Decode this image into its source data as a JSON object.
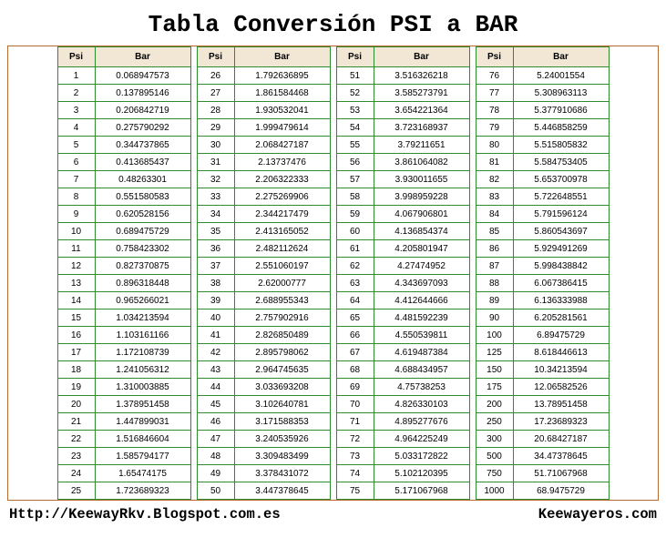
{
  "title": "Tabla Conversión PSI a BAR",
  "footer_left": "Http://KeewayRkv.Blogspot.com.es",
  "footer_right": "Keewayeros.com",
  "headers": {
    "psi": "Psi",
    "bar": "Bar"
  },
  "styling": {
    "border_color": "#2e8b2e",
    "header_bg": "#f2e7d5",
    "outer_border": "#b86a2e",
    "title_fontsize": 26,
    "cell_fontsize": 10,
    "footer_fontsize": 15.5
  },
  "columns": [
    [
      {
        "psi": "1",
        "bar": "0.068947573"
      },
      {
        "psi": "2",
        "bar": "0.137895146"
      },
      {
        "psi": "3",
        "bar": "0.206842719"
      },
      {
        "psi": "4",
        "bar": "0.275790292"
      },
      {
        "psi": "5",
        "bar": "0.344737865"
      },
      {
        "psi": "6",
        "bar": "0.413685437"
      },
      {
        "psi": "7",
        "bar": "0.48263301"
      },
      {
        "psi": "8",
        "bar": "0.551580583"
      },
      {
        "psi": "9",
        "bar": "0.620528156"
      },
      {
        "psi": "10",
        "bar": "0.689475729"
      },
      {
        "psi": "11",
        "bar": "0.758423302"
      },
      {
        "psi": "12",
        "bar": "0.827370875"
      },
      {
        "psi": "13",
        "bar": "0.896318448"
      },
      {
        "psi": "14",
        "bar": "0.965266021"
      },
      {
        "psi": "15",
        "bar": "1.034213594"
      },
      {
        "psi": "16",
        "bar": "1.103161166"
      },
      {
        "psi": "17",
        "bar": "1.172108739"
      },
      {
        "psi": "18",
        "bar": "1.241056312"
      },
      {
        "psi": "19",
        "bar": "1.310003885"
      },
      {
        "psi": "20",
        "bar": "1.378951458"
      },
      {
        "psi": "21",
        "bar": "1.447899031"
      },
      {
        "psi": "22",
        "bar": "1.516846604"
      },
      {
        "psi": "23",
        "bar": "1.585794177"
      },
      {
        "psi": "24",
        "bar": "1.65474175"
      },
      {
        "psi": "25",
        "bar": "1.723689323"
      }
    ],
    [
      {
        "psi": "26",
        "bar": "1.792636895"
      },
      {
        "psi": "27",
        "bar": "1.861584468"
      },
      {
        "psi": "28",
        "bar": "1.930532041"
      },
      {
        "psi": "29",
        "bar": "1.999479614"
      },
      {
        "psi": "30",
        "bar": "2.068427187"
      },
      {
        "psi": "31",
        "bar": "2.13737476"
      },
      {
        "psi": "32",
        "bar": "2.206322333"
      },
      {
        "psi": "33",
        "bar": "2.275269906"
      },
      {
        "psi": "34",
        "bar": "2.344217479"
      },
      {
        "psi": "35",
        "bar": "2.413165052"
      },
      {
        "psi": "36",
        "bar": "2.482112624"
      },
      {
        "psi": "37",
        "bar": "2.551060197"
      },
      {
        "psi": "38",
        "bar": "2.62000777"
      },
      {
        "psi": "39",
        "bar": "2.688955343"
      },
      {
        "psi": "40",
        "bar": "2.757902916"
      },
      {
        "psi": "41",
        "bar": "2.826850489"
      },
      {
        "psi": "42",
        "bar": "2.895798062"
      },
      {
        "psi": "43",
        "bar": "2.964745635"
      },
      {
        "psi": "44",
        "bar": "3.033693208"
      },
      {
        "psi": "45",
        "bar": "3.102640781"
      },
      {
        "psi": "46",
        "bar": "3.171588353"
      },
      {
        "psi": "47",
        "bar": "3.240535926"
      },
      {
        "psi": "48",
        "bar": "3.309483499"
      },
      {
        "psi": "49",
        "bar": "3.378431072"
      },
      {
        "psi": "50",
        "bar": "3.447378645"
      }
    ],
    [
      {
        "psi": "51",
        "bar": "3.516326218"
      },
      {
        "psi": "52",
        "bar": "3.585273791"
      },
      {
        "psi": "53",
        "bar": "3.654221364"
      },
      {
        "psi": "54",
        "bar": "3.723168937"
      },
      {
        "psi": "55",
        "bar": "3.79211651"
      },
      {
        "psi": "56",
        "bar": "3.861064082"
      },
      {
        "psi": "57",
        "bar": "3.930011655"
      },
      {
        "psi": "58",
        "bar": "3.998959228"
      },
      {
        "psi": "59",
        "bar": "4.067906801"
      },
      {
        "psi": "60",
        "bar": "4.136854374"
      },
      {
        "psi": "61",
        "bar": "4.205801947"
      },
      {
        "psi": "62",
        "bar": "4.27474952"
      },
      {
        "psi": "63",
        "bar": "4.343697093"
      },
      {
        "psi": "64",
        "bar": "4.412644666"
      },
      {
        "psi": "65",
        "bar": "4.481592239"
      },
      {
        "psi": "66",
        "bar": "4.550539811"
      },
      {
        "psi": "67",
        "bar": "4.619487384"
      },
      {
        "psi": "68",
        "bar": "4.688434957"
      },
      {
        "psi": "69",
        "bar": "4.75738253"
      },
      {
        "psi": "70",
        "bar": "4.826330103"
      },
      {
        "psi": "71",
        "bar": "4.895277676"
      },
      {
        "psi": "72",
        "bar": "4.964225249"
      },
      {
        "psi": "73",
        "bar": "5.033172822"
      },
      {
        "psi": "74",
        "bar": "5.102120395"
      },
      {
        "psi": "75",
        "bar": "5.171067968"
      }
    ],
    [
      {
        "psi": "76",
        "bar": "5.24001554"
      },
      {
        "psi": "77",
        "bar": "5.308963113"
      },
      {
        "psi": "78",
        "bar": "5.377910686"
      },
      {
        "psi": "79",
        "bar": "5.446858259"
      },
      {
        "psi": "80",
        "bar": "5.515805832"
      },
      {
        "psi": "81",
        "bar": "5.584753405"
      },
      {
        "psi": "82",
        "bar": "5.653700978"
      },
      {
        "psi": "83",
        "bar": "5.722648551"
      },
      {
        "psi": "84",
        "bar": "5.791596124"
      },
      {
        "psi": "85",
        "bar": "5.860543697"
      },
      {
        "psi": "86",
        "bar": "5.929491269"
      },
      {
        "psi": "87",
        "bar": "5.998438842"
      },
      {
        "psi": "88",
        "bar": "6.067386415"
      },
      {
        "psi": "89",
        "bar": "6.136333988"
      },
      {
        "psi": "90",
        "bar": "6.205281561"
      },
      {
        "psi": "100",
        "bar": "6.89475729"
      },
      {
        "psi": "125",
        "bar": "8.618446613"
      },
      {
        "psi": "150",
        "bar": "10.34213594"
      },
      {
        "psi": "175",
        "bar": "12.06582526"
      },
      {
        "psi": "200",
        "bar": "13.78951458"
      },
      {
        "psi": "250",
        "bar": "17.23689323"
      },
      {
        "psi": "300",
        "bar": "20.68427187"
      },
      {
        "psi": "500",
        "bar": "34.47378645"
      },
      {
        "psi": "750",
        "bar": "51.71067968"
      },
      {
        "psi": "1000",
        "bar": "68.9475729"
      }
    ]
  ]
}
